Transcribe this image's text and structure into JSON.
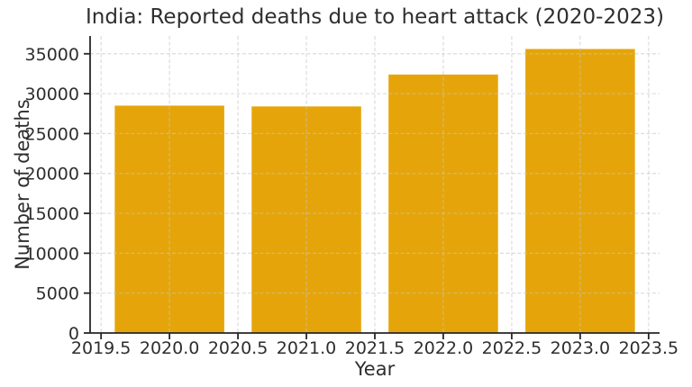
{
  "chart_data": {
    "type": "bar",
    "title": "India: Reported deaths due to heart attack (2020-2023)",
    "xlabel": "Year",
    "ylabel": "Number of deaths",
    "categories": [
      2020,
      2021,
      2022,
      2023
    ],
    "values": [
      28500,
      28400,
      32400,
      35600
    ],
    "bar_width": 0.8,
    "xlim": [
      2019.42,
      2023.58
    ],
    "ylim": [
      0,
      37230
    ],
    "xticks": {
      "values": [
        2019.5,
        2020.0,
        2020.5,
        2021.0,
        2021.5,
        2022.0,
        2022.5,
        2023.0,
        2023.5
      ],
      "labels": [
        "2019.5",
        "2020.0",
        "2020.5",
        "2021.0",
        "2021.5",
        "2022.0",
        "2022.5",
        "2023.0",
        "2023.5"
      ]
    },
    "yticks": {
      "values": [
        0,
        5000,
        10000,
        15000,
        20000,
        25000,
        30000,
        35000
      ],
      "labels": [
        "0",
        "5000",
        "10000",
        "15000",
        "20000",
        "25000",
        "30000",
        "35000"
      ]
    },
    "grid": true,
    "grid_style": "dashed",
    "legend_position": "none",
    "colors": {
      "bar": "#E5A50A",
      "grid": "#C4C4C4",
      "axis": "#262626",
      "text": "#2E2E2E",
      "background": "#FFFFFF"
    }
  }
}
